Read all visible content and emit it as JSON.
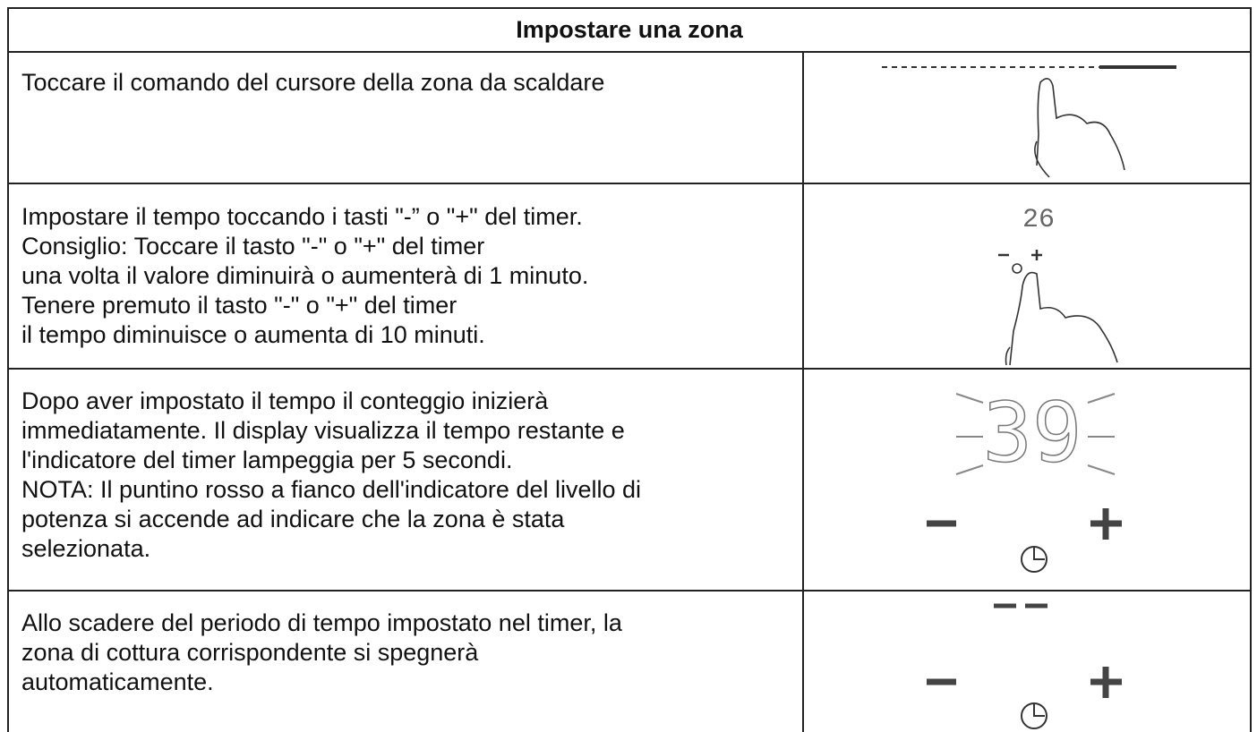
{
  "table": {
    "title": "Impostare una zona",
    "rows": [
      {
        "text": [
          "Toccare il comando del cursore della zona da scaldare"
        ]
      },
      {
        "text": [
          "Impostare il tempo toccando i tasti \"-” o \"+\" del timer.",
          "Consiglio: Toccare il tasto \"-\" o \"+\" del timer",
          "una volta il valore diminuirà o aumenterà di 1 minuto.",
          "Tenere premuto il tasto \"-\" o \"+\" del timer",
          "il tempo diminuisce o aumenta di 10 minuti."
        ],
        "display": "26"
      },
      {
        "text": [
          "Dopo aver impostato il tempo il conteggio inizierà",
          "immediatamente. Il display visualizza il tempo restante e",
          "l'indicatore del timer lampeggia per 5 secondi.",
          "NOTA: Il puntino rosso a fianco dell'indicatore del livello di",
          "potenza si accende ad indicare che la zona è stata",
          "selezionata."
        ],
        "display": "39"
      },
      {
        "text": [
          "Allo scadere del periodo di tempo impostato nel timer, la",
          "zona di cottura corrispondente si spegnerà",
          "automaticamente."
        ]
      }
    ]
  }
}
